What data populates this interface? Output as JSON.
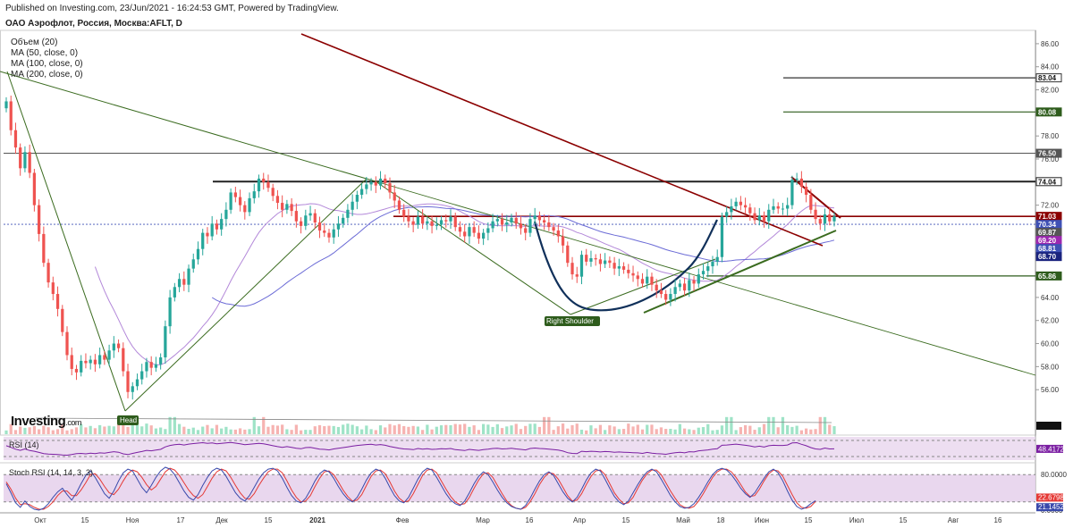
{
  "header": {
    "published": "Published on Investing.com, 23/Jun/2021 - 16:24:53 GMT, Powered by TradingView.",
    "symbol": "ОАО Аэрофлот, Россия, Москва:AFLT, D"
  },
  "legend": {
    "items": [
      "Объем (20)",
      "MA (50, close, 0)",
      "MA (100, close, 0)",
      "MA (200, close, 0)"
    ]
  },
  "brand": {
    "name": "Investing",
    "suffix": ".com"
  },
  "colors": {
    "up": "#26a69a",
    "down": "#ef5350",
    "ma_slow": "#6b6bd6",
    "ma_fast": "#b388d9",
    "trend_red": "#8b0000",
    "trend_green": "#3a6b1f",
    "cup": "#10305a",
    "panel_fill": "#e7d3ec"
  },
  "chart_data": {
    "type": "candlestick",
    "price_axis": {
      "range": [
        54,
        87
      ],
      "ticks": [
        "86.00",
        "84.00",
        "82.00",
        "80.00",
        "78.00",
        "76.00",
        "74.00",
        "72.00",
        "70.00",
        "68.00",
        "66.00",
        "64.00",
        "62.00",
        "60.00",
        "58.00",
        "56.00"
      ]
    },
    "x_ticks": [
      "Окт",
      "15",
      "Ноя",
      "17",
      "Дек",
      "15",
      "2021",
      "Фев",
      "Мар",
      "16",
      "Апр",
      "15",
      "Май",
      "18",
      "Июн",
      "15",
      "Июл",
      "15",
      "Авг",
      "16"
    ],
    "levels": [
      {
        "value": 83.04,
        "label": "83.04",
        "color": "#333333"
      },
      {
        "value": 80.08,
        "label": "80.08",
        "color": "#2e5c1c"
      },
      {
        "value": 76.5,
        "label": "76.50",
        "color": "#555555"
      },
      {
        "value": 74.04,
        "label": "74.04",
        "color": "#222222"
      },
      {
        "value": 71.03,
        "label": "71.03",
        "color": "#8b0000"
      },
      {
        "value": 70.34,
        "label": "70.34",
        "color": "#3f51b5"
      },
      {
        "value": 69.87,
        "label": "69.87",
        "color": "#555555"
      },
      {
        "value": 69.2,
        "label": "69.20",
        "color": "#9c27b0"
      },
      {
        "value": 68.81,
        "label": "68.81",
        "color": "#3f51b5"
      },
      {
        "value": 68.7,
        "label": "68.70",
        "color": "#1a237e"
      },
      {
        "value": 65.86,
        "label": "65.86",
        "color": "#2e5c1c"
      }
    ],
    "annotations": [
      {
        "text": "Right Shoulder",
        "date": "Апр",
        "price": 63.0
      },
      {
        "text": "Head",
        "date": "Ноя",
        "price": 54.8
      }
    ],
    "closes": [
      81.0,
      78.5,
      77.0,
      75.2,
      76.6,
      74.8,
      72.0,
      69.5,
      67.0,
      65.3,
      64.3,
      63.0,
      61.0,
      59.0,
      57.8,
      57.5,
      58.5,
      58.3,
      58.6,
      58.2,
      59.0,
      58.6,
      59.4,
      60.0,
      59.6,
      57.6,
      55.8,
      56.3,
      56.9,
      57.6,
      58.4,
      57.9,
      58.2,
      58.8,
      61.5,
      64.0,
      64.9,
      65.6,
      65.1,
      66.5,
      67.3,
      68.2,
      69.6,
      69.3,
      70.4,
      69.9,
      70.8,
      71.6,
      73.1,
      72.7,
      72.0,
      71.4,
      72.6,
      73.2,
      74.3,
      74.0,
      73.5,
      72.8,
      72.2,
      71.6,
      72.1,
      71.5,
      70.6,
      70.2,
      71.1,
      71.3,
      70.5,
      69.8,
      69.6,
      69.2,
      69.9,
      70.4,
      70.9,
      71.6,
      72.3,
      72.9,
      73.4,
      73.8,
      74.0,
      73.7,
      74.3,
      73.9,
      73.1,
      72.4,
      71.6,
      71.0,
      70.6,
      70.3,
      71.0,
      70.4,
      70.6,
      70.2,
      70.3,
      70.7,
      70.6,
      71.0,
      70.1,
      69.7,
      69.3,
      70.1,
      69.6,
      69.1,
      69.6,
      70.0,
      70.6,
      70.8,
      70.3,
      70.5,
      70.9,
      70.4,
      70.0,
      69.6,
      70.8,
      71.1,
      70.7,
      70.5,
      70.1,
      69.8,
      69.3,
      68.5,
      67.0,
      66.0,
      65.8,
      67.7,
      67.1,
      67.4,
      67.3,
      66.9,
      67.2,
      67.0,
      66.5,
      66.7,
      66.4,
      66.1,
      65.9,
      65.6,
      65.2,
      65.8,
      65.1,
      64.6,
      64.3,
      63.8,
      64.3,
      64.9,
      65.2,
      64.6,
      65.5,
      65.2,
      66.0,
      66.3,
      66.7,
      67.1,
      67.5,
      71.0,
      71.4,
      71.9,
      72.3,
      72.0,
      71.8,
      71.3,
      70.7,
      71.1,
      70.6,
      71.6,
      71.9,
      71.7,
      71.7,
      72.0,
      74.2,
      74.3,
      73.6,
      72.9,
      71.6,
      70.8,
      70.4,
      71.2,
      70.6,
      71.03
    ]
  },
  "rsi": {
    "label": "RSI (14)",
    "value_label": "48.4172",
    "values": [
      62,
      55,
      47,
      42,
      48,
      41,
      38,
      33,
      28,
      26,
      25,
      24,
      22,
      21,
      24,
      28,
      29,
      27,
      30,
      28,
      31,
      30,
      33,
      36,
      34,
      27,
      24,
      29,
      33,
      37,
      42,
      40,
      43,
      46,
      57,
      63,
      66,
      68,
      65,
      69,
      71,
      73,
      75,
      72,
      74,
      70,
      72,
      74,
      76,
      73,
      70,
      66,
      68,
      70,
      72,
      70,
      66,
      62,
      58,
      55,
      58,
      55,
      51,
      49,
      54,
      55,
      51,
      47,
      46,
      44,
      48,
      51,
      54,
      57,
      60,
      63,
      65,
      67,
      68,
      65,
      67,
      64,
      59,
      55,
      51,
      48,
      47,
      45,
      50,
      47,
      49,
      46,
      47,
      49,
      48,
      50,
      45,
      43,
      41,
      46,
      44,
      42,
      45,
      47,
      50,
      51,
      48,
      49,
      51,
      48,
      46,
      44,
      50,
      52,
      50,
      49,
      47,
      45,
      43,
      39,
      32,
      29,
      28,
      38,
      36,
      38,
      37,
      35,
      37,
      36,
      34,
      35,
      34,
      33,
      32,
      31,
      29,
      33,
      30,
      28,
      27,
      25,
      29,
      32,
      34,
      31,
      36,
      35,
      40,
      42,
      44,
      47,
      49,
      64,
      65,
      67,
      69,
      66,
      64,
      61,
      57,
      60,
      56,
      62,
      64,
      63,
      63,
      65,
      74,
      75,
      68,
      62,
      54,
      48,
      46,
      52,
      48,
      48.4
    ]
  },
  "stoch": {
    "label": "Stoch RSI (14, 14, 3, 3)",
    "k_label": "22.6798",
    "d_label": "21.1452",
    "levels": [
      80,
      20
    ],
    "ticks": [
      "80.0000",
      "0.0000"
    ],
    "k": [
      60,
      40,
      18,
      8,
      22,
      10,
      4,
      2,
      6,
      16,
      30,
      42,
      50,
      36,
      24,
      40,
      60,
      78,
      88,
      74,
      56,
      38,
      28,
      44,
      66,
      84,
      92,
      88,
      70,
      52,
      40,
      56,
      74,
      88,
      96,
      92,
      80,
      62,
      44,
      30,
      24,
      36,
      56,
      74,
      88,
      94,
      90,
      76,
      58,
      40,
      28,
      22,
      34,
      52,
      70,
      84,
      92,
      94,
      88,
      72,
      52,
      34,
      22,
      18,
      28,
      46,
      66,
      82,
      90,
      86,
      72,
      54,
      38,
      26,
      20,
      30,
      48,
      68,
      84,
      92,
      88,
      72,
      52,
      34,
      22,
      18,
      30,
      50,
      70,
      86,
      94,
      90,
      74,
      56,
      38,
      24,
      16,
      12,
      22,
      40,
      60,
      76,
      86,
      80,
      64,
      46,
      30,
      18,
      10,
      6,
      4,
      12,
      28,
      48,
      66,
      80,
      86,
      78,
      60,
      42,
      28,
      20,
      30,
      48,
      68,
      84,
      92,
      88,
      70,
      50,
      32,
      20,
      14,
      22,
      40,
      58,
      74,
      86,
      92,
      86,
      70,
      52,
      34,
      20,
      10,
      6,
      8,
      16,
      30,
      46,
      64,
      80,
      90,
      94,
      90,
      80,
      66,
      50,
      38,
      30,
      40,
      56,
      72,
      86,
      92,
      84,
      66,
      44,
      24,
      10,
      4,
      8,
      16,
      22.7
    ],
    "d": [
      64,
      48,
      28,
      14,
      16,
      14,
      8,
      4,
      4,
      10,
      20,
      34,
      44,
      44,
      34,
      34,
      46,
      62,
      80,
      82,
      70,
      54,
      40,
      36,
      48,
      66,
      82,
      90,
      86,
      74,
      58,
      46,
      54,
      70,
      86,
      94,
      90,
      78,
      62,
      46,
      34,
      28,
      36,
      54,
      72,
      86,
      92,
      88,
      74,
      56,
      40,
      28,
      26,
      38,
      56,
      72,
      86,
      92,
      92,
      84,
      66,
      46,
      30,
      20,
      22,
      34,
      54,
      72,
      86,
      88,
      80,
      64,
      46,
      32,
      22,
      24,
      36,
      56,
      76,
      88,
      90,
      82,
      64,
      44,
      28,
      20,
      22,
      38,
      58,
      78,
      90,
      92,
      84,
      66,
      48,
      32,
      20,
      14,
      16,
      30,
      50,
      68,
      82,
      84,
      74,
      56,
      38,
      22,
      12,
      6,
      4,
      8,
      20,
      38,
      58,
      74,
      84,
      82,
      70,
      52,
      34,
      22,
      24,
      38,
      58,
      76,
      88,
      90,
      80,
      60,
      40,
      26,
      16,
      18,
      30,
      50,
      68,
      82,
      90,
      90,
      80,
      62,
      44,
      28,
      14,
      8,
      6,
      10,
      22,
      38,
      56,
      74,
      86,
      92,
      92,
      86,
      74,
      58,
      42,
      32,
      34,
      48,
      66,
      82,
      90,
      88,
      76,
      56,
      36,
      18,
      8,
      6,
      10,
      21.1
    ]
  }
}
